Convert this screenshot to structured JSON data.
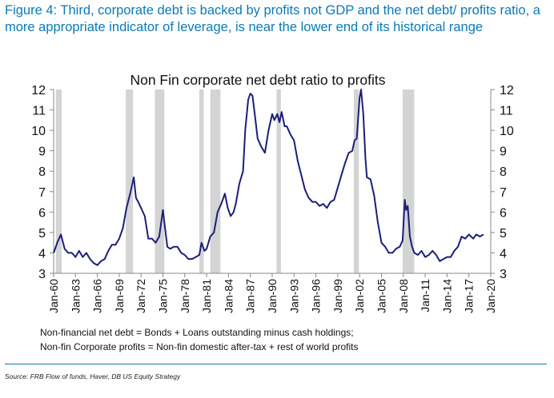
{
  "figure_title": "Figure 4: Third, corporate debt is backed by profits not GDP and the net debt/ profits ratio, a more appropriate indicator of leverage, is near the lower end of its historical range",
  "notes": [
    "Non-financial net debt = Bonds + Loans outstanding minus cash holdings;",
    "Non-fin Corporate profits = Non-fin domestic after-tax + rest of world profits"
  ],
  "source": "Source: FRB Flow of funds, Haver, DB US Equity Strategy",
  "colors": {
    "title": "#0a7ab8",
    "line": "#1a1f7a",
    "recession": "#d4d4d4",
    "axis": "#888888"
  },
  "chart_data": {
    "type": "line",
    "title": "Non Fin corporate net debt ratio to profits",
    "xlabel": "",
    "ylabel": "",
    "xlim": [
      1960,
      2020
    ],
    "ylim": [
      3,
      12
    ],
    "grid": false,
    "legend": "none",
    "yticks": [
      3,
      4,
      5,
      6,
      7,
      8,
      9,
      10,
      11,
      12
    ],
    "ytick_labels": [
      "3",
      "4",
      "5",
      "6",
      "7",
      "8",
      "9",
      "10",
      "11",
      "12"
    ],
    "xticks": [
      1960,
      1963,
      1966,
      1969,
      1972,
      1975,
      1978,
      1981,
      1984,
      1987,
      1990,
      1993,
      1996,
      1999,
      2002,
      2005,
      2008,
      2011,
      2014,
      2017,
      2020
    ],
    "xtick_labels": [
      "Jan-60",
      "Jan-63",
      "Jan-66",
      "Jan-69",
      "Jan-72",
      "Jan-75",
      "Jan-78",
      "Jan-81",
      "Jan-84",
      "Jan-87",
      "Jan-90",
      "Jan-93",
      "Jan-96",
      "Jan-99",
      "Jan-02",
      "Jan-05",
      "Jan-08",
      "Jan-11",
      "Jan-14",
      "Jan-17",
      "Jan-20"
    ],
    "recession_shading": [
      [
        1960.3,
        1961.1
      ],
      [
        1969.9,
        1970.9
      ],
      [
        1973.9,
        1975.2
      ],
      [
        1980.0,
        1980.6
      ],
      [
        1981.5,
        1982.9
      ],
      [
        1990.6,
        1991.2
      ],
      [
        2001.2,
        2001.9
      ],
      [
        2007.9,
        2009.5
      ]
    ],
    "series": [
      {
        "x": [
          1960.0,
          1960.5,
          1961.0,
          1961.5,
          1962.0,
          1962.5,
          1963.0,
          1963.5,
          1964.0,
          1964.5,
          1965.0,
          1965.5,
          1966.0,
          1966.5,
          1967.0,
          1967.5,
          1968.0,
          1968.5,
          1969.0,
          1969.5,
          1970.0,
          1970.5,
          1971.0,
          1971.3,
          1971.6,
          1972.0,
          1972.5,
          1973.0,
          1973.5,
          1974.0,
          1974.5,
          1975.0,
          1975.3,
          1975.6,
          1976.0,
          1976.5,
          1977.0,
          1977.5,
          1978.0,
          1978.5,
          1979.0,
          1979.5,
          1980.0,
          1980.3,
          1980.7,
          1981.0,
          1981.5,
          1982.0,
          1982.5,
          1983.0,
          1983.5,
          1983.9,
          1984.3,
          1984.7,
          1985.0,
          1985.5,
          1986.0,
          1986.3,
          1986.7,
          1987.0,
          1987.3,
          1987.7,
          1988.0,
          1988.5,
          1989.0,
          1989.5,
          1990.0,
          1990.3,
          1990.7,
          1991.0,
          1991.3,
          1991.7,
          1992.0,
          1992.5,
          1993.0,
          1993.5,
          1994.0,
          1994.5,
          1995.0,
          1995.5,
          1996.0,
          1996.5,
          1997.0,
          1997.5,
          1998.0,
          1998.5,
          1999.0,
          1999.5,
          2000.0,
          2000.5,
          2001.0,
          2001.3,
          2001.6,
          2002.0,
          2002.2,
          2002.5,
          2002.8,
          2003.0,
          2003.5,
          2004.0,
          2004.5,
          2005.0,
          2005.5,
          2006.0,
          2006.5,
          2007.0,
          2007.5,
          2007.9,
          2008.2,
          2008.4,
          2008.6,
          2008.9,
          2009.2,
          2009.5,
          2010.0,
          2010.5,
          2011.0,
          2011.5,
          2012.0,
          2012.5,
          2013.0,
          2013.5,
          2014.0,
          2014.5,
          2015.0,
          2015.5,
          2016.0,
          2016.5,
          2017.0,
          2017.3,
          2017.6,
          2018.0,
          2018.5,
          2019.0
        ],
        "values": [
          4.0,
          4.5,
          4.9,
          4.2,
          4.0,
          4.0,
          3.8,
          4.1,
          3.8,
          4.0,
          3.7,
          3.5,
          3.4,
          3.6,
          3.7,
          4.1,
          4.4,
          4.4,
          4.7,
          5.2,
          6.2,
          6.9,
          7.7,
          6.7,
          6.5,
          6.2,
          5.8,
          4.7,
          4.7,
          4.5,
          4.8,
          6.1,
          5.2,
          4.3,
          4.2,
          4.3,
          4.3,
          4.0,
          3.9,
          3.7,
          3.7,
          3.8,
          3.9,
          4.5,
          4.1,
          4.2,
          4.8,
          5.0,
          6.0,
          6.4,
          6.9,
          6.2,
          5.8,
          6.0,
          6.4,
          7.4,
          8.0,
          10.0,
          11.5,
          11.8,
          11.7,
          10.5,
          9.6,
          9.2,
          8.9,
          10.0,
          10.8,
          10.5,
          10.8,
          10.4,
          10.9,
          10.2,
          10.2,
          9.8,
          9.5,
          8.5,
          7.8,
          7.1,
          6.7,
          6.5,
          6.5,
          6.3,
          6.4,
          6.2,
          6.5,
          6.6,
          7.2,
          7.8,
          8.4,
          8.9,
          9.0,
          9.5,
          9.6,
          11.6,
          12.0,
          10.8,
          8.6,
          7.7,
          7.6,
          6.8,
          5.5,
          4.5,
          4.3,
          4.0,
          4.0,
          4.2,
          4.3,
          4.6,
          6.6,
          6.1,
          6.3,
          4.8,
          4.3,
          4.0,
          3.9,
          4.1,
          3.8,
          3.9,
          4.1,
          3.9,
          3.6,
          3.7,
          3.8,
          3.8,
          4.1,
          4.3,
          4.8,
          4.7,
          4.9,
          4.8,
          4.7,
          4.9,
          4.8,
          4.9
        ]
      }
    ]
  }
}
